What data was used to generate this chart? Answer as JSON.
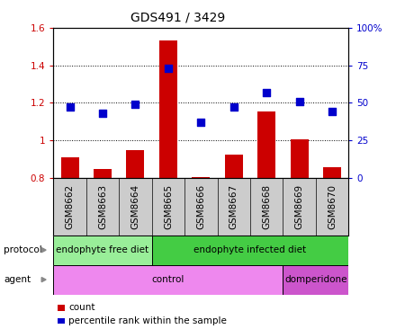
{
  "title": "GDS491 / 3429",
  "samples": [
    "GSM8662",
    "GSM8663",
    "GSM8664",
    "GSM8665",
    "GSM8666",
    "GSM8667",
    "GSM8668",
    "GSM8669",
    "GSM8670"
  ],
  "count_values": [
    0.91,
    0.845,
    0.945,
    1.535,
    0.805,
    0.925,
    1.155,
    1.005,
    0.855
  ],
  "percentile_values": [
    47,
    43,
    49,
    73,
    37,
    47,
    57,
    51,
    44
  ],
  "ylim_left": [
    0.8,
    1.6
  ],
  "ylim_right": [
    0,
    100
  ],
  "yticks_left": [
    0.8,
    1.0,
    1.2,
    1.4,
    1.6
  ],
  "ytick_labels_left": [
    "0.8",
    "1",
    "1.2",
    "1.4",
    "1.6"
  ],
  "yticks_right": [
    0,
    25,
    50,
    75,
    100
  ],
  "ytick_labels_right": [
    "0",
    "25",
    "50",
    "75",
    "100%"
  ],
  "bar_color": "#cc0000",
  "dot_color": "#0000cc",
  "protocol_groups": [
    {
      "label": "endophyte free diet",
      "start": 0,
      "end": 3,
      "color": "#99ee99"
    },
    {
      "label": "endophyte infected diet",
      "start": 3,
      "end": 9,
      "color": "#44cc44"
    }
  ],
  "agent_groups": [
    {
      "label": "control",
      "start": 0,
      "end": 7,
      "color": "#ee88ee"
    },
    {
      "label": "domperidone",
      "start": 7,
      "end": 9,
      "color": "#cc55cc"
    }
  ],
  "legend_count_label": "count",
  "legend_pct_label": "percentile rank within the sample",
  "bar_width": 0.55,
  "dot_size": 30,
  "grid_color": "#000000",
  "tick_color_left": "#cc0000",
  "tick_color_right": "#0000cc",
  "sample_bg_color": "#cccccc",
  "title_fontsize": 10,
  "tick_fontsize": 7.5,
  "label_fontsize": 7.5,
  "row_fontsize": 7.5
}
